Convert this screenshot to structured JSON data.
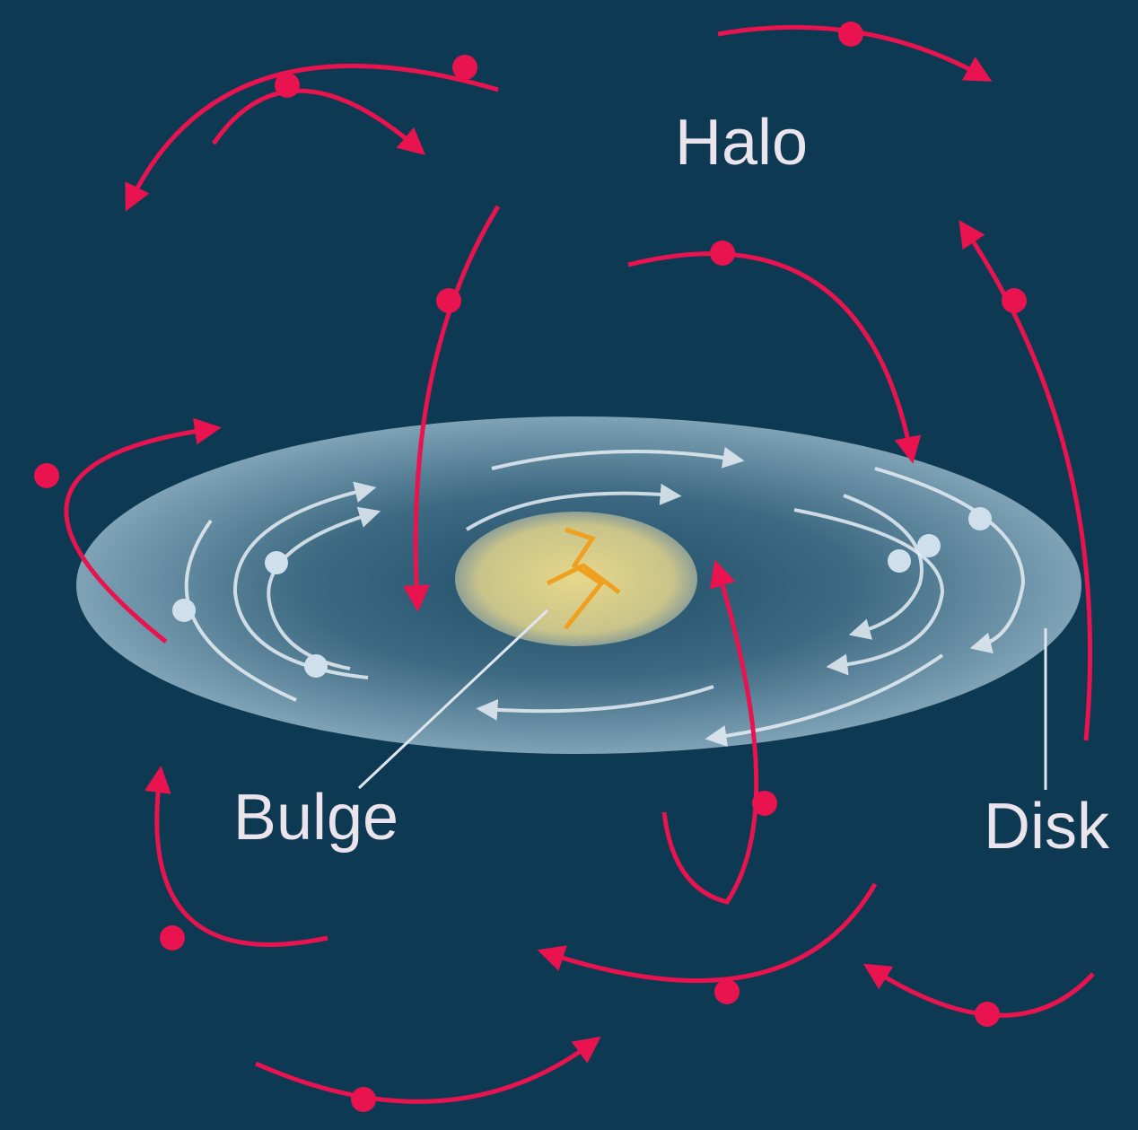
{
  "labels": {
    "halo": "Halo",
    "bulge": "Bulge",
    "disk": "Disk"
  }
}
